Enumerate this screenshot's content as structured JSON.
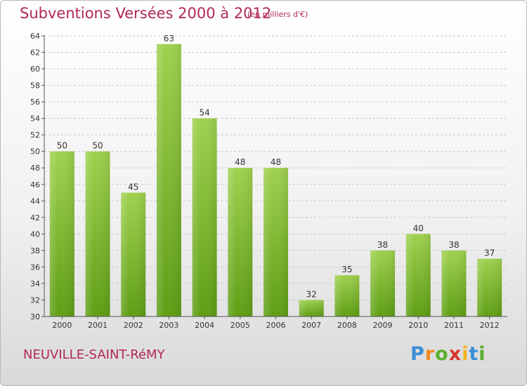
{
  "title": "Subventions Versées 2000 à 2012",
  "subtitle": "(en milliers d'€)",
  "commune": "NEUVILLE-SAINT-RéMY",
  "logo": {
    "letters": [
      "P",
      "r",
      "o",
      "x",
      "i",
      "t",
      "i"
    ],
    "colors": [
      "#3a8fd6",
      "#f08a1c",
      "#5aaf2e",
      "#d8342c",
      "#f2b51c",
      "#3a8fd6",
      "#5aaf2e"
    ]
  },
  "colors": {
    "title": "#b0285a",
    "bar_light": "#9fd14f",
    "bar_dark": "#5e9e14",
    "grid": "#c8c8c8"
  },
  "chart_data": {
    "type": "bar",
    "title": "Subventions Versées 2000 à 2012",
    "subtitle": "(en milliers d'€)",
    "categories": [
      "2000",
      "2001",
      "2002",
      "2003",
      "2004",
      "2005",
      "2006",
      "2007",
      "2008",
      "2009",
      "2010",
      "2011",
      "2012"
    ],
    "values": [
      50,
      50,
      45,
      63,
      54,
      48,
      48,
      32,
      35,
      38,
      40,
      38,
      37
    ],
    "ylim": [
      30,
      64
    ],
    "yticks": [
      30,
      32,
      34,
      36,
      38,
      40,
      42,
      44,
      46,
      48,
      50,
      52,
      54,
      56,
      58,
      60,
      62,
      64
    ],
    "grid": "horizontal dashed",
    "legend": "none",
    "data_labels": true
  }
}
